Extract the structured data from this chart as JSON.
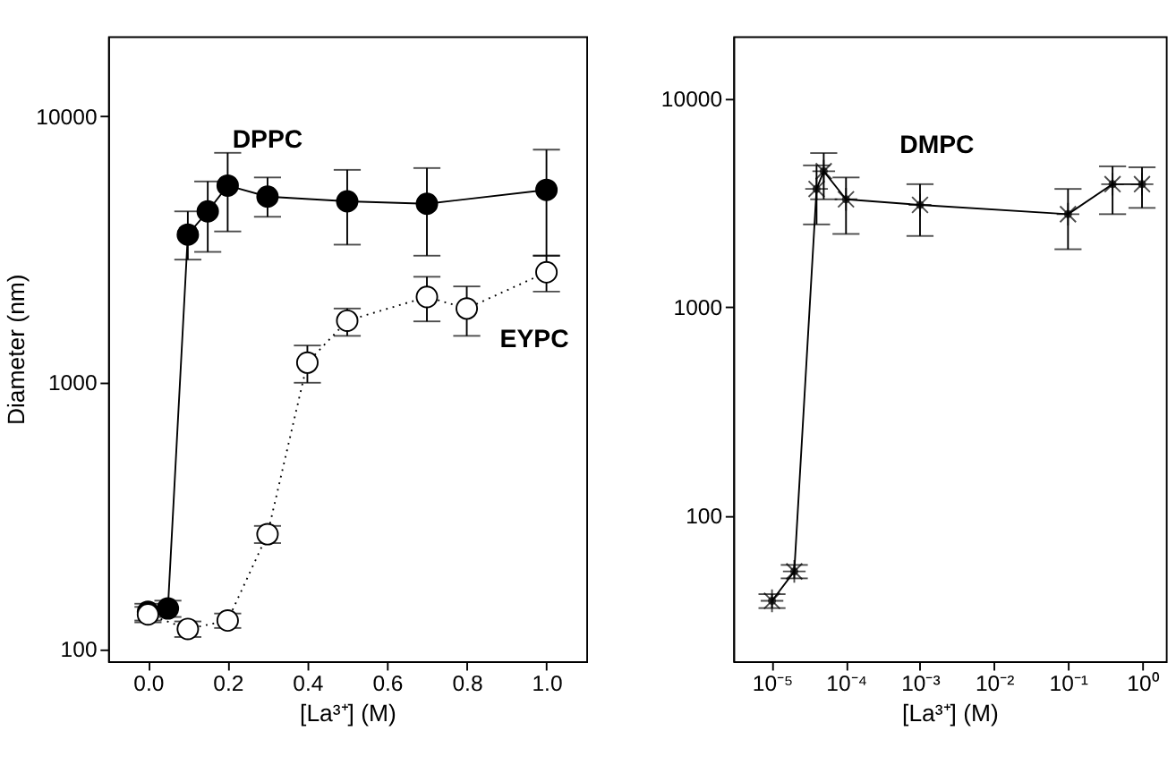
{
  "chart_data": [
    {
      "type": "line",
      "xlabel": "[La³⁺] (M)",
      "ylabel": "Diameter (nm)",
      "log": "y",
      "grid": false,
      "xlim": [
        -0.1,
        1.1
      ],
      "xticks": [
        {
          "value": 0,
          "label": "0.0"
        },
        {
          "value": 0.2,
          "label": "0.2"
        },
        {
          "value": 0.4,
          "label": "0.4"
        },
        {
          "value": 0.6,
          "label": "0.6"
        },
        {
          "value": 0.8,
          "label": "0.8"
        },
        {
          "value": 1,
          "label": "1.0"
        }
      ],
      "ylim": [
        90,
        20000
      ],
      "yticks": [
        100,
        1000,
        10000
      ],
      "series": [
        {
          "name": "DPPC",
          "color": "#000000",
          "marker": "circle",
          "line_style": "solid",
          "x": [
            0,
            0.05,
            0.1,
            0.15,
            0.2,
            0.3,
            0.5,
            0.7,
            1.0
          ],
          "values": [
            138,
            142,
            3600,
            4400,
            5500,
            5000,
            4800,
            4700,
            5300
          ],
          "errors": [
            [
              128,
              148
            ],
            [
              132,
              152
            ],
            [
              2900,
              4400
            ],
            [
              3100,
              5700
            ],
            [
              3700,
              7300
            ],
            [
              4200,
              5900
            ],
            [
              3300,
              6300
            ],
            [
              3000,
              6400
            ],
            [
              3000,
              7500
            ]
          ]
        },
        {
          "name": "EYPC",
          "color": "#000000",
          "marker": "circle",
          "line_style": "dotted",
          "x": [
            0,
            0.1,
            0.2,
            0.3,
            0.4,
            0.5,
            0.7,
            0.8,
            1.0
          ],
          "values": [
            135,
            119,
            128,
            270,
            1190,
            1710,
            2100,
            1900,
            2600
          ],
          "errors": [
            [
              126,
              144
            ],
            [
              111,
              127
            ],
            [
              120,
              136
            ],
            [
              250,
              290
            ],
            [
              1000,
              1380
            ],
            [
              1500,
              1900
            ],
            [
              1700,
              2500
            ],
            [
              1500,
              2300
            ],
            [
              2200,
              3000
            ]
          ]
        }
      ]
    },
    {
      "type": "line",
      "xlabel": "[La³⁺] (M)",
      "log": "xy",
      "grid": false,
      "xlim": [
        3e-06,
        2.1
      ],
      "xticks": [
        {
          "value": 1e-05,
          "label": "10⁻⁵"
        },
        {
          "value": 0.0001,
          "label": "10⁻⁴"
        },
        {
          "value": 0.001,
          "label": "10⁻³"
        },
        {
          "value": 0.01,
          "label": "10⁻²"
        },
        {
          "value": 0.1,
          "label": "10⁻¹"
        },
        {
          "value": 1,
          "label": "10⁰"
        }
      ],
      "ylim": [
        20,
        20000
      ],
      "yticks": [
        100,
        1000,
        10000
      ],
      "series": [
        {
          "name": "DMPC",
          "color": "#000000",
          "marker": "star",
          "line_style": "solid",
          "x": [
            1e-05,
            2e-05,
            4e-05,
            5e-05,
            0.0001,
            0.001,
            0.1,
            0.4,
            1.0
          ],
          "values": [
            39,
            54,
            3700,
            4500,
            3300,
            3100,
            2800,
            3900,
            3900
          ],
          "errors": [
            [
              36,
              42
            ],
            [
              50,
              58
            ],
            [
              2500,
              4800
            ],
            [
              3300,
              5500
            ],
            [
              2250,
              4200
            ],
            [
              2200,
              3900
            ],
            [
              1900,
              3700
            ],
            [
              2800,
              4750
            ],
            [
              3000,
              4700
            ]
          ]
        }
      ]
    }
  ]
}
